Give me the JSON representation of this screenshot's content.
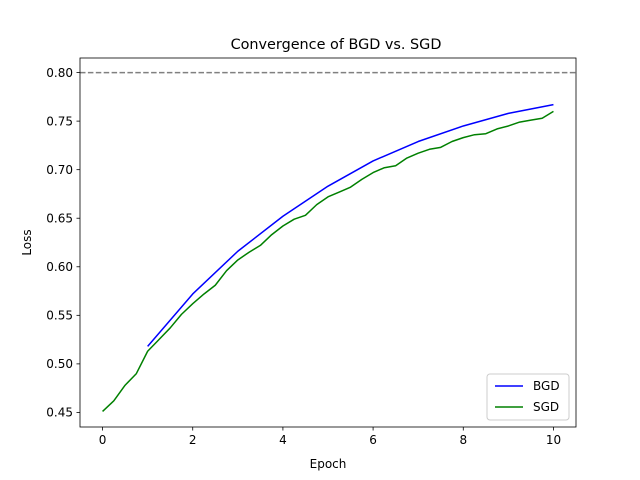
{
  "chart_data": {
    "type": "line",
    "title": "Convergence of BGD vs. SGD",
    "xlabel": "Epoch",
    "ylabel": "Loss",
    "xlim": [
      -0.5,
      10.5
    ],
    "ylim": [
      0.435,
      0.815
    ],
    "xticks": [
      0,
      2,
      4,
      6,
      8,
      10
    ],
    "yticks": [
      0.45,
      0.5,
      0.55,
      0.6,
      0.65,
      0.7,
      0.75,
      0.8
    ],
    "ytick_labels": [
      "0.45",
      "0.50",
      "0.55",
      "0.60",
      "0.65",
      "0.70",
      "0.75",
      "0.80"
    ],
    "grid": false,
    "legend_position": "bottom-right",
    "reference_line": {
      "y": 0.8,
      "style": "dashed",
      "color": "#808080"
    },
    "series": [
      {
        "name": "BGD",
        "color": "#0000ff",
        "x": [
          1,
          2,
          3,
          4,
          5,
          6,
          7,
          8,
          9,
          10
        ],
        "y": [
          0.518,
          0.572,
          0.616,
          0.652,
          0.683,
          0.709,
          0.729,
          0.745,
          0.758,
          0.767
        ]
      },
      {
        "name": "SGD",
        "color": "#008000",
        "x": [
          0,
          0.25,
          0.5,
          0.75,
          1,
          1.25,
          1.5,
          1.75,
          2,
          2.25,
          2.5,
          2.75,
          3,
          3.25,
          3.5,
          3.75,
          4,
          4.25,
          4.5,
          4.75,
          5,
          5.25,
          5.5,
          5.75,
          6,
          6.25,
          6.5,
          6.75,
          7,
          7.25,
          7.5,
          7.75,
          8,
          8.25,
          8.5,
          8.75,
          9,
          9.25,
          9.5,
          9.75,
          10
        ],
        "y": [
          0.451,
          0.462,
          0.478,
          0.49,
          0.513,
          0.525,
          0.537,
          0.551,
          0.562,
          0.572,
          0.581,
          0.596,
          0.607,
          0.615,
          0.622,
          0.633,
          0.642,
          0.649,
          0.653,
          0.664,
          0.672,
          0.677,
          0.682,
          0.69,
          0.697,
          0.702,
          0.704,
          0.712,
          0.717,
          0.721,
          0.723,
          0.729,
          0.733,
          0.736,
          0.737,
          0.742,
          0.745,
          0.749,
          0.751,
          0.753,
          0.76
        ]
      }
    ]
  }
}
